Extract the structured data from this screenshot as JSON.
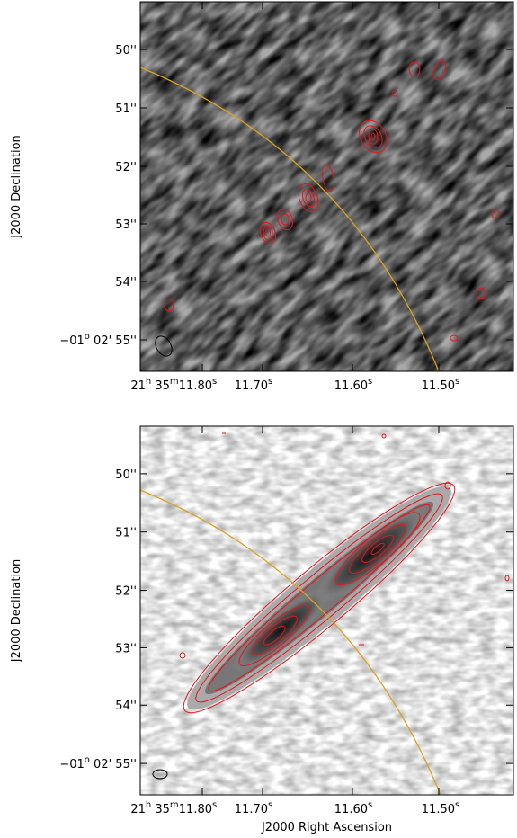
{
  "panels": [
    {
      "y_label": "J2000 Declination",
      "yticks": [
        [
          {
            "t": "50''"
          }
        ],
        [
          {
            "t": "51''"
          }
        ],
        [
          {
            "t": "52''"
          }
        ],
        [
          {
            "t": "53''"
          }
        ],
        [
          {
            "t": "54''"
          }
        ],
        [
          {
            "t": "−01"
          },
          {
            "sup": "o"
          },
          {
            "t": " 02' 55''"
          }
        ]
      ],
      "xticks": [
        [
          {
            "t": "21"
          },
          {
            "sup": "h"
          },
          {
            "t": " 35"
          },
          {
            "sup": "m"
          }
        ],
        [
          {
            "t": "11.80"
          },
          {
            "sup": "s"
          }
        ],
        [
          {
            "t": "11.70"
          },
          {
            "sup": "s"
          }
        ],
        [
          {
            "t": "11.60"
          },
          {
            "sup": "s"
          }
        ],
        [
          {
            "t": "11.50"
          },
          {
            "sup": "s"
          }
        ]
      ]
    },
    {
      "y_label": "J2000 Declination",
      "x_label": "J2000 Right Ascension",
      "yticks": [
        [
          {
            "t": "50''"
          }
        ],
        [
          {
            "t": "51''"
          }
        ],
        [
          {
            "t": "52''"
          }
        ],
        [
          {
            "t": "53''"
          }
        ],
        [
          {
            "t": "54''"
          }
        ],
        [
          {
            "t": "−01"
          },
          {
            "sup": "o"
          },
          {
            "t": " 02' 55''"
          }
        ]
      ],
      "xticks": [
        [
          {
            "t": "21"
          },
          {
            "sup": "h"
          },
          {
            "t": " 35"
          },
          {
            "sup": "m"
          }
        ],
        [
          {
            "t": "11.80"
          },
          {
            "sup": "s"
          }
        ],
        [
          {
            "t": "11.70"
          },
          {
            "sup": "s"
          }
        ],
        [
          {
            "t": "11.60"
          },
          {
            "sup": "s"
          }
        ],
        [
          {
            "t": "11.50"
          },
          {
            "sup": "s"
          }
        ]
      ]
    }
  ]
}
